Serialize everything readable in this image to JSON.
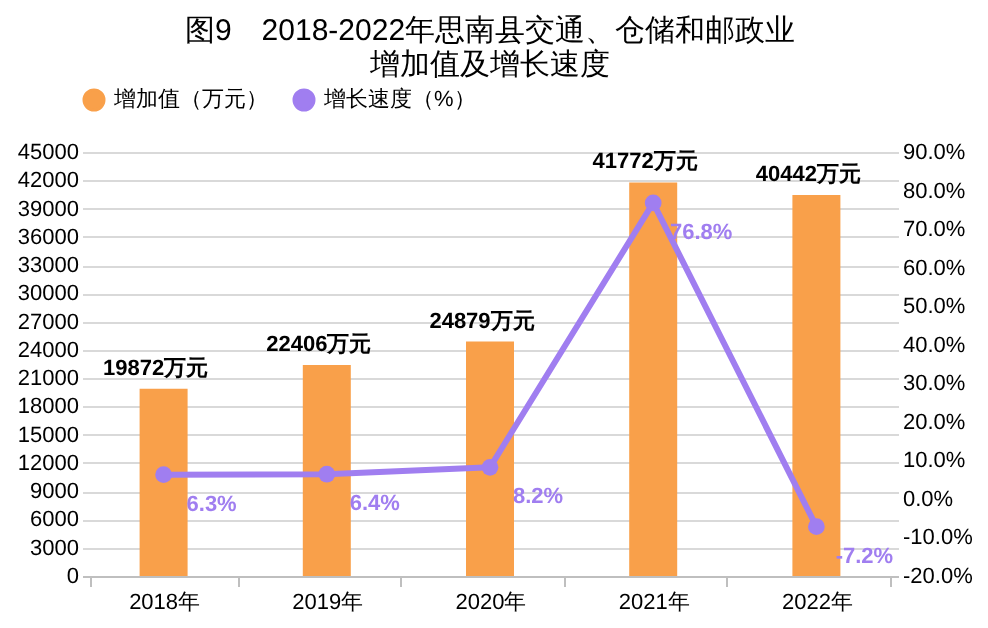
{
  "chart_data": {
    "type": "bar",
    "title": [
      "图9　2018-2022年思南县交通、仓储和邮政业",
      "增加值及增长速度"
    ],
    "categories": [
      "2018年",
      "2019年",
      "2020年",
      "2021年",
      "2022年"
    ],
    "series": [
      {
        "name": "增加值（万元）",
        "color": "#f9a04a",
        "values": [
          19872,
          22406,
          24879,
          41772,
          40442
        ],
        "value_labels": [
          "19872万元",
          "22406万元",
          "24879万元",
          "41772万元",
          "40442万元"
        ]
      },
      {
        "name": "增长速度（%）",
        "type": "line",
        "axis": "y2",
        "color": "#a07ef0",
        "values": [
          6.3,
          6.4,
          8.2,
          76.8,
          -7.2
        ],
        "value_labels": [
          "6.3%",
          "6.4%",
          "8.2%",
          "76.8%",
          "-7.2%"
        ]
      }
    ],
    "ylim": [
      0,
      45000
    ],
    "yticks": [
      0,
      3000,
      6000,
      9000,
      12000,
      15000,
      18000,
      21000,
      24000,
      27000,
      30000,
      33000,
      36000,
      39000,
      42000,
      45000
    ],
    "y2lim": [
      -20,
      90
    ],
    "y2ticks": [
      {
        "value": -20,
        "label": "-20.0%"
      },
      {
        "value": -10,
        "label": "-10.0%"
      },
      {
        "value": 0,
        "label": "0.0%"
      },
      {
        "value": 10,
        "label": "10.0%"
      },
      {
        "value": 20,
        "label": "20.0%"
      },
      {
        "value": 30,
        "label": "30.0%"
      },
      {
        "value": 40,
        "label": "40.0%"
      },
      {
        "value": 50,
        "label": "50.0%"
      },
      {
        "value": 60,
        "label": "60.0%"
      },
      {
        "value": 70,
        "label": "70.0%"
      },
      {
        "value": 80,
        "label": "80.0%"
      },
      {
        "value": 90,
        "label": "90.0%"
      }
    ],
    "grid": "y",
    "legend": "top",
    "marker": "circle",
    "line_style": "solid"
  }
}
